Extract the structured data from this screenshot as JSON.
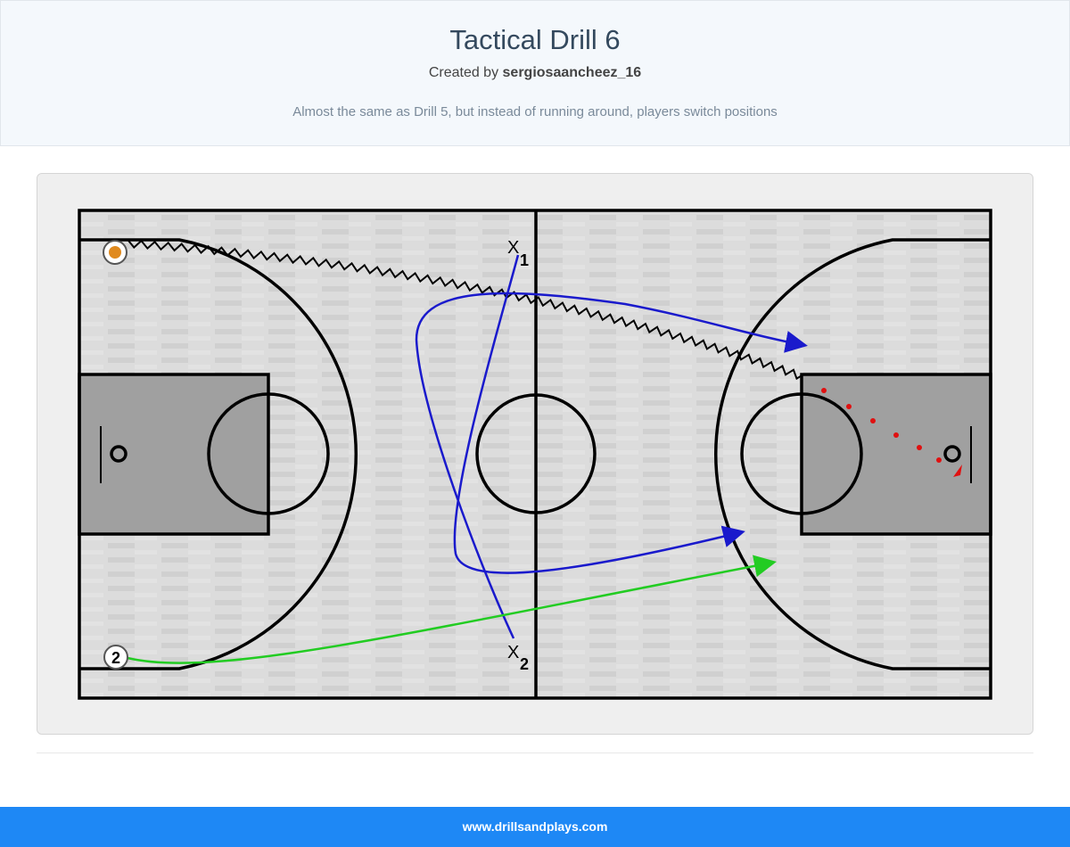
{
  "header": {
    "title": "Tactical Drill 6",
    "created_by_prefix": "Created by",
    "author": "sergiosaancheez_16",
    "description": "Almost the same as Drill 5, but instead of running around, players switch positions"
  },
  "diagram": {
    "players": [
      {
        "label": "X",
        "sub": "1"
      },
      {
        "label": "X",
        "sub": "2"
      },
      {
        "label": "2"
      }
    ],
    "colors": {
      "pass_blue": "#1a1acc",
      "cut_green": "#22cc22",
      "shot_red": "#e01010",
      "dribble": "#000000"
    },
    "icons": [
      "basketball-icon"
    ]
  },
  "footer": {
    "site": "www.drillsandplays.com"
  }
}
